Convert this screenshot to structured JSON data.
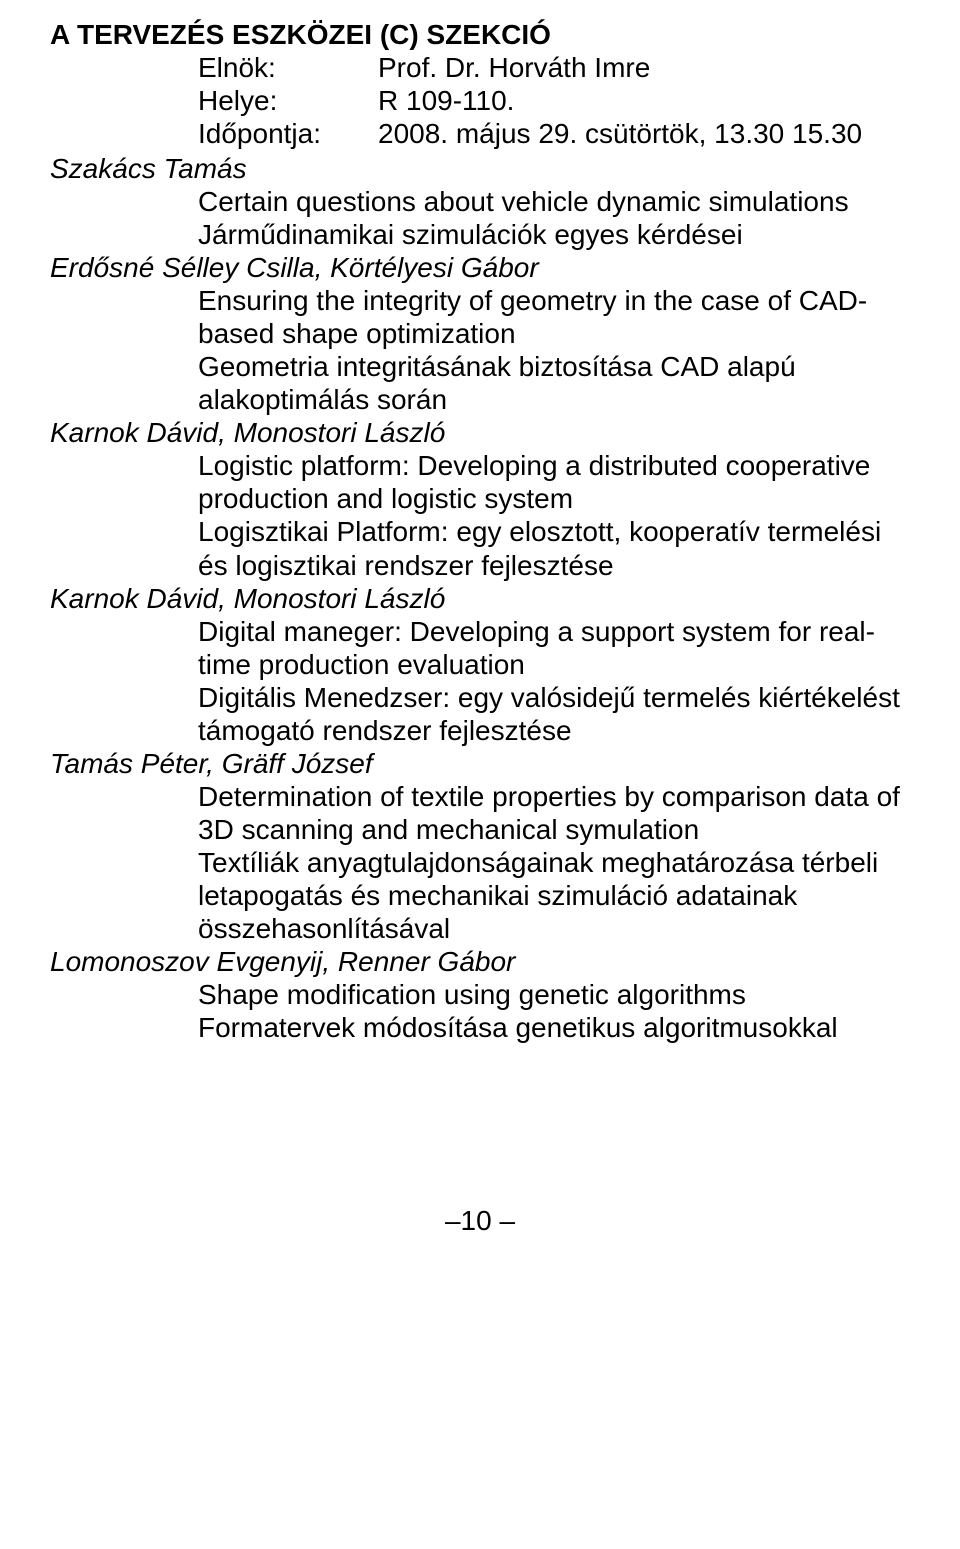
{
  "section_title": "A TERVEZÉS ESZKÖZEI (C) SZEKCIÓ",
  "header": {
    "chair_label": "Elnök:",
    "chair_value": "Prof. Dr. Horváth Imre",
    "place_label": "Helye:",
    "place_value": "R 109-110.",
    "time_label": "Időpontja:",
    "time_value": "2008. május 29. csütörtök, 13.30 15.30"
  },
  "entries": [
    {
      "author": "Szakács Tamás",
      "lines": [
        "Certain questions about vehicle dynamic simulations",
        "Járműdinamikai szimulációk egyes kérdései"
      ]
    },
    {
      "author": "Erdősné Sélley Csilla, Körtélyesi Gábor",
      "lines": [
        "Ensuring the integrity of geometry in the case of CAD-based shape optimization",
        "Geometria integritásának biztosítása CAD alapú alakoptimálás során"
      ]
    },
    {
      "author": "Karnok Dávid, Monostori László",
      "lines": [
        "Logistic platform: Developing a distributed cooperative production and logistic system",
        "Logisztikai Platform: egy elosztott, kooperatív termelési és logisztikai rendszer fejlesztése"
      ]
    },
    {
      "author": "Karnok Dávid, Monostori László",
      "lines": [
        "Digital maneger: Developing a support system for real-time production evaluation",
        "Digitális Menedzser: egy valósidejű termelés kiértékelést támogató rendszer fejlesztése"
      ]
    },
    {
      "author": "Tamás Péter, Gräff József",
      "lines": [
        "Determination of textile properties by comparison data of 3D scanning and mechanical symulation",
        "Textíliák anyagtulajdonságainak meghatározása térbeli letapogatás és mechanikai szimuláció adatainak összehasonlításával"
      ]
    },
    {
      "author": "Lomonoszov Evgenyij, Renner Gábor",
      "lines": [
        "Shape modification using genetic algorithms",
        "Formatervek módosítása genetikus algoritmusokkal"
      ]
    }
  ],
  "page_number": "–10 –"
}
